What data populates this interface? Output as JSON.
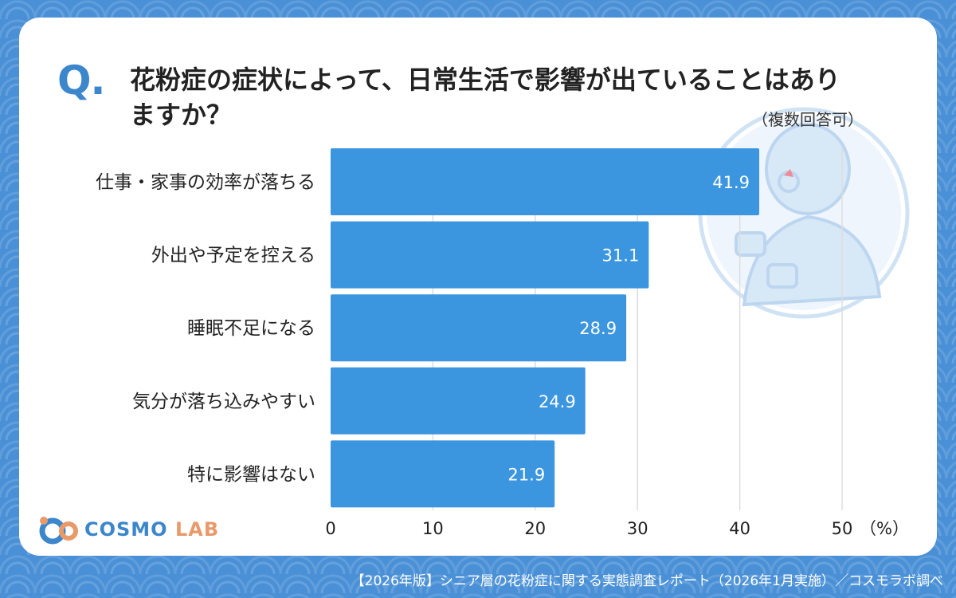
{
  "question": {
    "mark": "Q",
    "mark_dot": ".",
    "line1": "花粉症の症状によって、日常生活で影響が出ていることはあり",
    "line2": "ますか？",
    "note": "（複数回答可）"
  },
  "chart_data": {
    "type": "bar",
    "orientation": "horizontal",
    "categories": [
      "仕事・家事の効率が落ちる",
      "外出や予定を控える",
      "睡眠不足になる",
      "気分が落ち込みやすい",
      "特に影響はない"
    ],
    "values": [
      41.9,
      31.1,
      28.9,
      24.9,
      21.9
    ],
    "value_labels": [
      "41.9",
      "31.1",
      "28.9",
      "24.9",
      "21.9"
    ],
    "xlim": [
      0,
      50
    ],
    "ticks": [
      0,
      10,
      20,
      30,
      40,
      50
    ],
    "tick_labels": [
      "0",
      "10",
      "20",
      "30",
      "40",
      "50"
    ],
    "unit": "（%）",
    "grid": true,
    "bar_color": "#3b95df",
    "grid_color": "#dddddd"
  },
  "logo": {
    "text_main": "COSMO",
    "text_sub": "LAB",
    "colors": [
      "#3c86cc",
      "#e89a6a"
    ]
  },
  "footer": "【2026年版】シニア層の花粉症に関する実態調査レポート（2026年1月実施）／コスモラボ調べ"
}
